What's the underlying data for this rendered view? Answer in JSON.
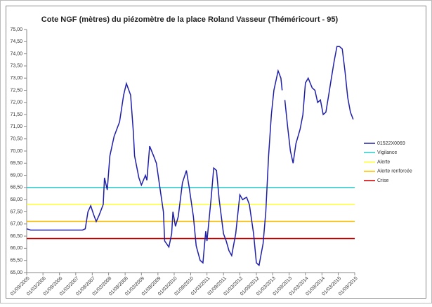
{
  "chart_data": {
    "type": "line",
    "title": "Cote NGF (mètres) du piézomètre de la place Roland Vasseur (Théméricourt - 95)",
    "xlim": [
      "01/09/2005",
      "01/09/2015"
    ],
    "xticks": [
      "01/09/2005",
      "01/03/2006",
      "01/09/2006",
      "01/03/2007",
      "01/09/2007",
      "01/03/2008",
      "01/09/2008",
      "01/03/2009",
      "01/09/2009",
      "01/03/2010",
      "01/09/2010",
      "01/03/2011",
      "01/09/2011",
      "01/03/2012",
      "01/09/2012",
      "01/03/2013",
      "01/09/2013",
      "01/03/2014",
      "01/09/2014",
      "01/03/2015",
      "01/09/2015"
    ],
    "ylim": [
      65,
      75
    ],
    "yticks": [
      {
        "value": 65,
        "label": "65,00"
      },
      {
        "value": 65.5,
        "label": "65,50"
      },
      {
        "value": 66,
        "label": "66,00"
      },
      {
        "value": 66.5,
        "label": "66,50"
      },
      {
        "value": 67,
        "label": "67,00"
      },
      {
        "value": 67.5,
        "label": "67,50"
      },
      {
        "value": 68,
        "label": "68,00"
      },
      {
        "value": 68.5,
        "label": "68,50"
      },
      {
        "value": 69,
        "label": "69,00"
      },
      {
        "value": 69.5,
        "label": "69,50"
      },
      {
        "value": 70,
        "label": "70,00"
      },
      {
        "value": 70.5,
        "label": "70,50"
      },
      {
        "value": 71,
        "label": "71,00"
      },
      {
        "value": 71.5,
        "label": "71,50"
      },
      {
        "value": 72,
        "label": "72,00"
      },
      {
        "value": 72.5,
        "label": "72,50"
      },
      {
        "value": 73,
        "label": "73,00"
      },
      {
        "value": 73.5,
        "label": "73,50"
      },
      {
        "value": 74,
        "label": "74,00"
      },
      {
        "value": 74.5,
        "label": "74,50"
      },
      {
        "value": 75,
        "label": "75,00"
      }
    ],
    "grid": false,
    "legend": "right",
    "series": [
      {
        "name": "01522X0069",
        "color": "#1f1fa8",
        "x": [
          "01/09/2005",
          "15/10/2005",
          "15/05/2007",
          "15/06/2007",
          "15/07/2007",
          "15/08/2007",
          "15/09/2007",
          "15/10/2007",
          "15/11/2007",
          "01/01/2008",
          "15/01/2008",
          "15/02/2008",
          "15/03/2008",
          "01/05/2008",
          "01/07/2008",
          "15/08/2008",
          "15/09/2008",
          "01/11/2008",
          "01/12/2008",
          "15/12/2008",
          "01/02/2009",
          "01/03/2009",
          "15/04/2009",
          "01/05/2009",
          "01/06/2009",
          "15/07/2009",
          "15/08/2009",
          "15/09/2009",
          "01/11/2009",
          "15/11/2009",
          "01/01/2010",
          "01/02/2010",
          "15/02/2010",
          "15/03/2010",
          "15/04/2010",
          "01/06/2010",
          "15/07/2010",
          "15/08/2010",
          "01/10/2010",
          "01/11/2010",
          "15/12/2010",
          "15/01/2011",
          "15/02/2011",
          "01/03/2011",
          "15/04/2011",
          "15/05/2011",
          "15/06/2011",
          "15/07/2011",
          "01/09/2011",
          "01/10/2011",
          "01/11/2011",
          "01/12/2011",
          "15/01/2012",
          "01/03/2012",
          "01/04/2012",
          "15/05/2012",
          "15/06/2012",
          "01/08/2012",
          "01/09/2012",
          "01/10/2012",
          "15/11/2012",
          "15/12/2012",
          "15/01/2013",
          "15/02/2013",
          "15/03/2013",
          "01/05/2013",
          "01/06/2013",
          "15/06/2013",
          "01/07/2013",
          "15/07/2013",
          "15/08/2013",
          "15/09/2013",
          "15/10/2013",
          "15/11/2013",
          "01/01/2014",
          "01/02/2014",
          "01/03/2014",
          "01/04/2014",
          "15/05/2014",
          "15/06/2014",
          "15/07/2014",
          "15/08/2014",
          "15/09/2014",
          "15/10/2014",
          "15/11/2014",
          "15/12/2014",
          "15/01/2015",
          "15/02/2015",
          "15/03/2015",
          "15/04/2015",
          "15/05/2015",
          "15/06/2015",
          "15/07/2015",
          "15/08/2015"
        ],
        "values": [
          66.8,
          66.75,
          66.75,
          66.8,
          67.5,
          67.75,
          67.4,
          67.1,
          67.35,
          67.8,
          68.9,
          68.4,
          69.8,
          70.6,
          71.2,
          72.3,
          72.78,
          72.3,
          70.8,
          69.8,
          68.9,
          68.6,
          69.0,
          68.8,
          70.2,
          69.8,
          69.5,
          68.7,
          67.5,
          66.3,
          66.05,
          66.6,
          67.5,
          66.9,
          67.3,
          68.7,
          69.2,
          68.5,
          67.3,
          66.1,
          65.5,
          65.4,
          66.7,
          66.3,
          68.0,
          69.3,
          69.2,
          68.0,
          66.6,
          66.3,
          65.9,
          65.7,
          66.6,
          68.2,
          68.0,
          68.1,
          67.8,
          66.6,
          65.4,
          65.3,
          66.2,
          67.5,
          69.8,
          71.5,
          72.5,
          73.3,
          73.0,
          72.5,
          null,
          72.1,
          71.0,
          70.0,
          69.5,
          70.3,
          70.9,
          71.5,
          72.8,
          73.0,
          72.6,
          72.5,
          72.0,
          72.1,
          71.5,
          71.6,
          72.3,
          73.0,
          73.7,
          74.3,
          74.3,
          74.2,
          73.3,
          72.2,
          71.6,
          71.3
        ]
      }
    ],
    "lines": [
      {
        "name": "Vigilance",
        "color": "#33cccc",
        "value": 68.5
      },
      {
        "name": "Alerte",
        "color": "#ffff33",
        "value": 67.8
      },
      {
        "name": "Alerte renforcée",
        "color": "#ffc000",
        "value": 67.1
      },
      {
        "name": "Crise",
        "color": "#cc0000",
        "value": 66.4
      }
    ]
  }
}
